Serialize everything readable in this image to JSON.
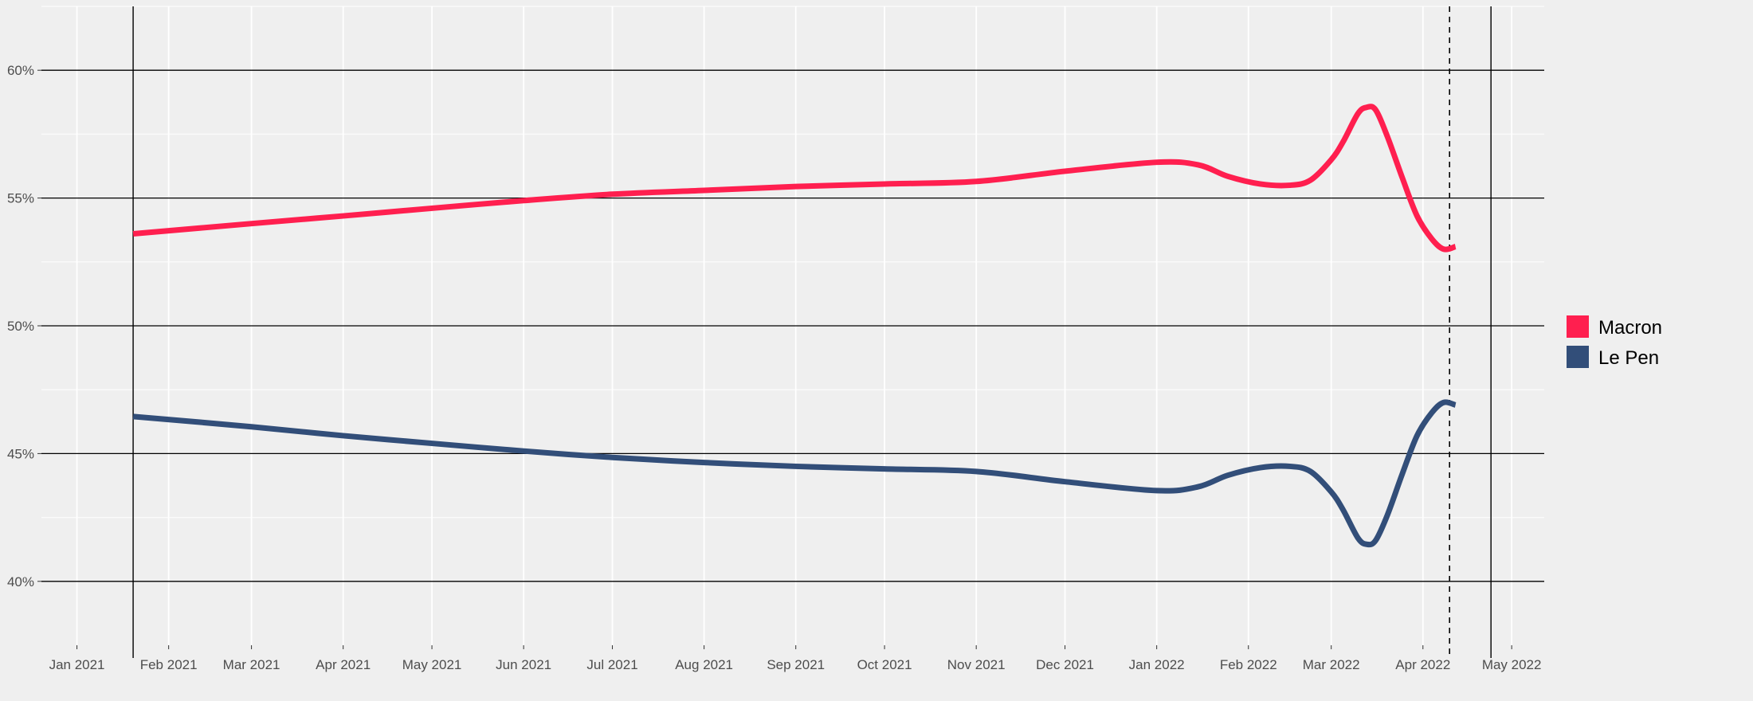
{
  "chart_data": {
    "type": "line",
    "title": "",
    "xlabel": "",
    "ylabel": "",
    "x_axis": {
      "type": "date",
      "range": [
        "2020-12-20",
        "2022-05-12"
      ],
      "ticks": [
        {
          "date": "2021-01-01",
          "label": "Jan 2021"
        },
        {
          "date": "2021-02-01",
          "label": "Feb 2021"
        },
        {
          "date": "2021-03-01",
          "label": "Mar 2021"
        },
        {
          "date": "2021-04-01",
          "label": "Apr 2021"
        },
        {
          "date": "2021-05-01",
          "label": "May 2021"
        },
        {
          "date": "2021-06-01",
          "label": "Jun 2021"
        },
        {
          "date": "2021-07-01",
          "label": "Jul 2021"
        },
        {
          "date": "2021-08-01",
          "label": "Aug 2021"
        },
        {
          "date": "2021-09-01",
          "label": "Sep 2021"
        },
        {
          "date": "2021-10-01",
          "label": "Oct 2021"
        },
        {
          "date": "2021-11-01",
          "label": "Nov 2021"
        },
        {
          "date": "2021-12-01",
          "label": "Dec 2021"
        },
        {
          "date": "2022-01-01",
          "label": "Jan 2022"
        },
        {
          "date": "2022-02-01",
          "label": "Feb 2022"
        },
        {
          "date": "2022-03-01",
          "label": "Mar 2022"
        },
        {
          "date": "2022-04-01",
          "label": "Apr 2022"
        },
        {
          "date": "2022-05-01",
          "label": "May 2022"
        }
      ]
    },
    "y_axis": {
      "range": [
        37.5,
        62.5
      ],
      "ticks": [
        {
          "value": 40,
          "label": "40%"
        },
        {
          "value": 45,
          "label": "45%"
        },
        {
          "value": 50,
          "label": "50%"
        },
        {
          "value": 55,
          "label": "55%"
        },
        {
          "value": 60,
          "label": "60%"
        }
      ],
      "minor_gridlines": [
        42.5,
        47.5,
        52.5,
        57.5,
        62.5
      ]
    },
    "reference_lines": {
      "solid_vertical_dates": [
        "2021-01-20",
        "2022-04-24"
      ],
      "dashed_vertical_date": "2022-04-10"
    },
    "legend": {
      "position": "right"
    },
    "series": [
      {
        "name": "Macron",
        "color": "#ff1f4f",
        "points": [
          [
            "2021-01-20",
            53.6
          ],
          [
            "2021-03-01",
            54.0
          ],
          [
            "2021-04-01",
            54.3
          ],
          [
            "2021-05-01",
            54.6
          ],
          [
            "2021-06-01",
            54.9
          ],
          [
            "2021-07-01",
            55.15
          ],
          [
            "2021-08-01",
            55.3
          ],
          [
            "2021-09-01",
            55.45
          ],
          [
            "2021-10-01",
            55.55
          ],
          [
            "2021-11-01",
            55.65
          ],
          [
            "2021-12-01",
            56.05
          ],
          [
            "2022-01-01",
            56.4
          ],
          [
            "2022-01-15",
            56.3
          ],
          [
            "2022-01-25",
            55.85
          ],
          [
            "2022-02-05",
            55.55
          ],
          [
            "2022-02-15",
            55.5
          ],
          [
            "2022-02-22",
            55.7
          ],
          [
            "2022-03-01",
            56.5
          ],
          [
            "2022-03-05",
            57.2
          ],
          [
            "2022-03-10",
            58.3
          ],
          [
            "2022-03-13",
            58.55
          ],
          [
            "2022-03-16",
            58.45
          ],
          [
            "2022-03-20",
            57.4
          ],
          [
            "2022-03-25",
            55.8
          ],
          [
            "2022-03-30",
            54.3
          ],
          [
            "2022-04-04",
            53.4
          ],
          [
            "2022-04-08",
            53.0
          ],
          [
            "2022-04-12",
            53.1
          ]
        ]
      },
      {
        "name": "Le Pen",
        "color": "#324e79",
        "points": [
          [
            "2021-01-20",
            46.45
          ],
          [
            "2021-03-01",
            46.05
          ],
          [
            "2021-04-01",
            45.7
          ],
          [
            "2021-05-01",
            45.4
          ],
          [
            "2021-06-01",
            45.1
          ],
          [
            "2021-07-01",
            44.85
          ],
          [
            "2021-08-01",
            44.65
          ],
          [
            "2021-09-01",
            44.5
          ],
          [
            "2021-10-01",
            44.4
          ],
          [
            "2021-11-01",
            44.3
          ],
          [
            "2021-12-01",
            43.9
          ],
          [
            "2022-01-01",
            43.55
          ],
          [
            "2022-01-15",
            43.7
          ],
          [
            "2022-01-25",
            44.15
          ],
          [
            "2022-02-05",
            44.45
          ],
          [
            "2022-02-15",
            44.5
          ],
          [
            "2022-02-22",
            44.3
          ],
          [
            "2022-03-01",
            43.5
          ],
          [
            "2022-03-05",
            42.8
          ],
          [
            "2022-03-10",
            41.7
          ],
          [
            "2022-03-13",
            41.45
          ],
          [
            "2022-03-16",
            41.6
          ],
          [
            "2022-03-20",
            42.6
          ],
          [
            "2022-03-25",
            44.2
          ],
          [
            "2022-03-30",
            45.7
          ],
          [
            "2022-04-04",
            46.6
          ],
          [
            "2022-04-08",
            47.0
          ],
          [
            "2022-04-12",
            46.9
          ]
        ]
      }
    ]
  }
}
